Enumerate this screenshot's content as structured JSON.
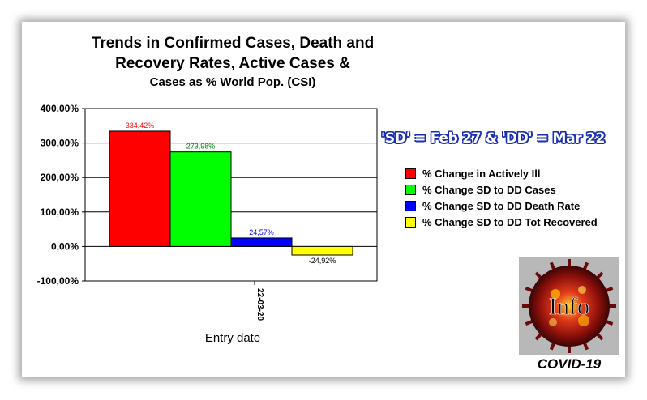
{
  "title": {
    "line1": "Trends in Confirmed Cases, Death and",
    "line2": "Recovery Rates, Active Cases &",
    "line3": "Cases as % World Pop. (CSI)"
  },
  "note": "'SD' = Feb 27 & 'DD' = Mar 22",
  "badge": {
    "icon": "virus-info-icon",
    "word": "Info",
    "caption": "COVID-19"
  },
  "chart_data": {
    "type": "bar",
    "categories": [
      "22-03-20"
    ],
    "xlabel": "Entry date",
    "ylabel": "",
    "ylim": [
      -100,
      400
    ],
    "yticks": [
      -100,
      0,
      100,
      200,
      300,
      400
    ],
    "ytick_labels": [
      "-100,00%",
      "0,00%",
      "100,00%",
      "200,00%",
      "300,00%",
      "400,00%"
    ],
    "grid": true,
    "legend_position": "right",
    "series": [
      {
        "name": "% Change in Actively Ill",
        "values": [
          334.42
        ],
        "label": "334,42%",
        "color": "#ff0000",
        "label_color": "#ff0000"
      },
      {
        "name": "% Change SD to DD Cases",
        "values": [
          273.98
        ],
        "label": "273,98%",
        "color": "#00ff00",
        "label_color": "#008000"
      },
      {
        "name": "% Change SD to DD Death Rate",
        "values": [
          24.57
        ],
        "label": "24,57%",
        "color": "#0000ff",
        "label_color": "#0000ff"
      },
      {
        "name": "% Change SD to DD Tot Recovered",
        "values": [
          -24.92
        ],
        "label": "-24,92%",
        "color": "#ffff00",
        "label_color": "#000000"
      }
    ]
  }
}
